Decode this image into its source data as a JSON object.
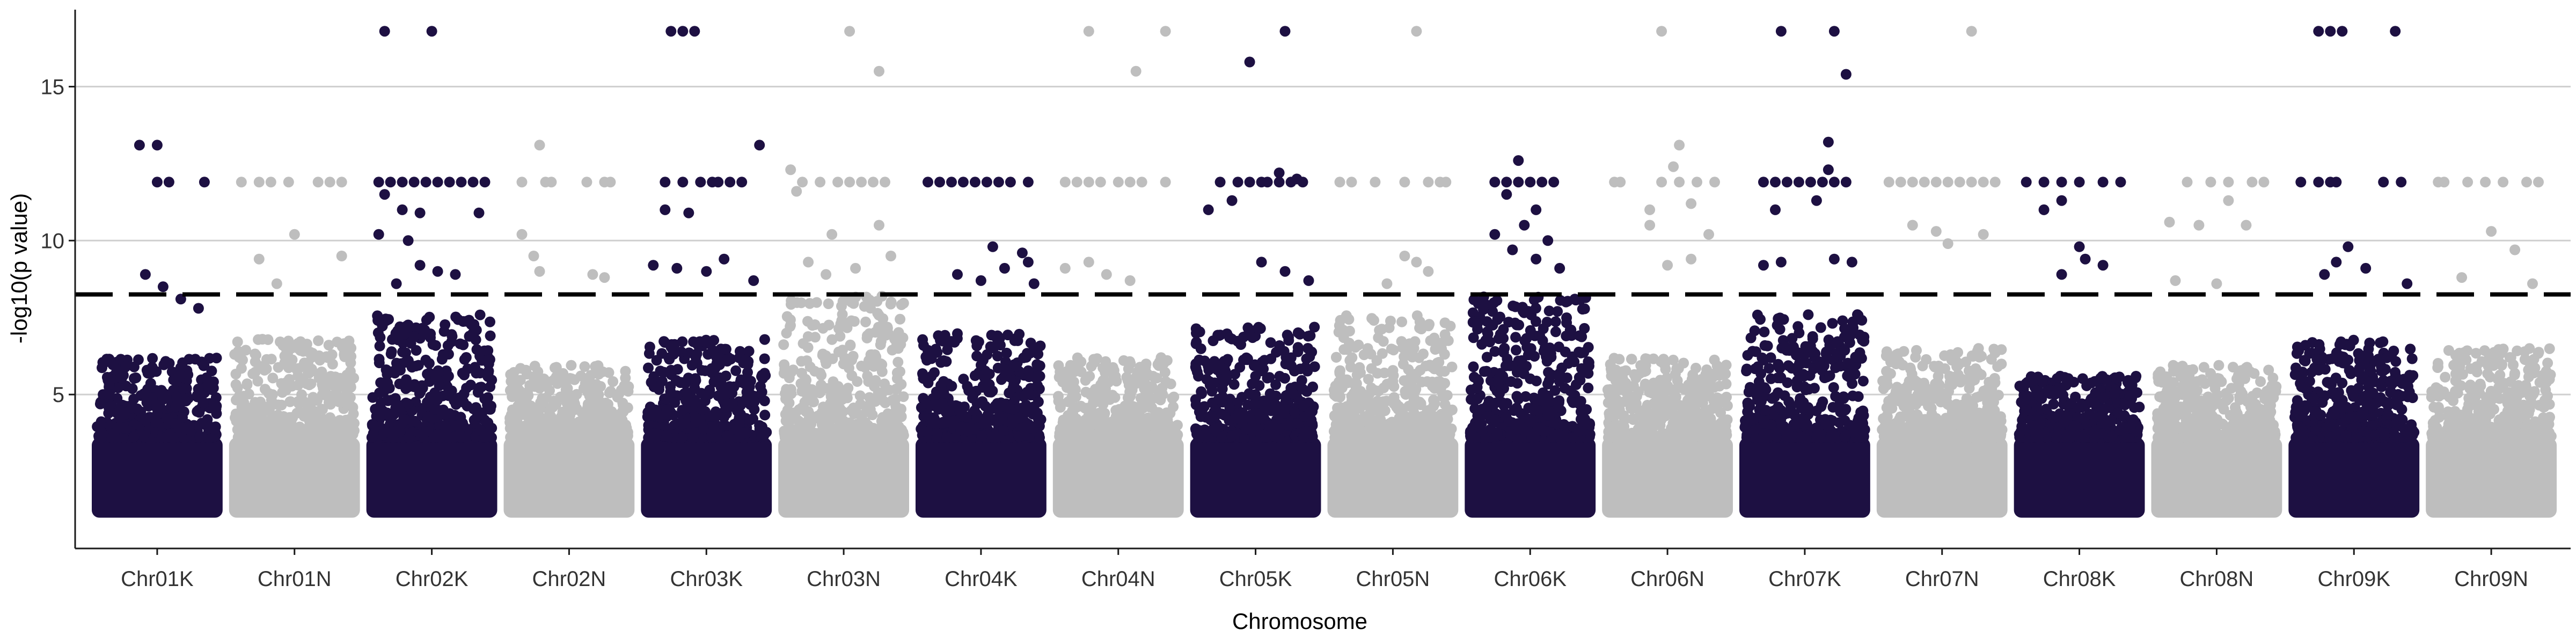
{
  "chart_data": {
    "type": "scatter",
    "title": "",
    "xlabel": "Chromosome",
    "ylabel": "-log10(p value)",
    "ylim": [
      0,
      17.5
    ],
    "yticks": [
      5,
      10,
      15
    ],
    "grid": "horizontal major lines",
    "legend": "none",
    "significance_threshold": 8.25,
    "colors": {
      "odd": "#1d1042",
      "even": "#bebebe",
      "threshold": "#000000"
    },
    "categories": [
      "Chr01K",
      "Chr01N",
      "Chr02K",
      "Chr02N",
      "Chr03K",
      "Chr03N",
      "Chr04K",
      "Chr04N",
      "Chr05K",
      "Chr05N",
      "Chr06K",
      "Chr06N",
      "Chr07K",
      "Chr07N",
      "Chr08K",
      "Chr08N",
      "Chr09K",
      "Chr09N"
    ],
    "series": [
      {
        "chromosome": "Chr01K",
        "bulk_max": 6.2,
        "top_hits": [
          [
            0.35,
            13.1
          ],
          [
            0.5,
            13.1
          ],
          [
            0.5,
            11.9
          ],
          [
            0.6,
            11.9
          ],
          [
            0.9,
            11.9
          ],
          [
            0.4,
            8.9
          ],
          [
            0.55,
            8.5
          ],
          [
            0.7,
            8.1
          ],
          [
            0.85,
            7.8
          ]
        ]
      },
      {
        "chromosome": "Chr01N",
        "bulk_max": 6.8,
        "top_hits": [
          [
            0.05,
            11.9
          ],
          [
            0.2,
            11.9
          ],
          [
            0.3,
            11.9
          ],
          [
            0.45,
            11.9
          ],
          [
            0.7,
            11.9
          ],
          [
            0.8,
            11.9
          ],
          [
            0.9,
            11.9
          ],
          [
            0.5,
            10.2
          ],
          [
            0.9,
            9.5
          ],
          [
            0.2,
            9.4
          ],
          [
            0.35,
            8.6
          ]
        ]
      },
      {
        "chromosome": "Chr02K",
        "bulk_max": 7.6,
        "top_hits": [
          [
            0.1,
            16.8
          ],
          [
            0.5,
            16.8
          ],
          [
            0.05,
            11.9
          ],
          [
            0.15,
            11.9
          ],
          [
            0.25,
            11.9
          ],
          [
            0.35,
            11.9
          ],
          [
            0.45,
            11.9
          ],
          [
            0.55,
            11.9
          ],
          [
            0.65,
            11.9
          ],
          [
            0.75,
            11.9
          ],
          [
            0.85,
            11.9
          ],
          [
            0.95,
            11.9
          ],
          [
            0.1,
            11.5
          ],
          [
            0.25,
            11.0
          ],
          [
            0.4,
            10.9
          ],
          [
            0.9,
            10.9
          ],
          [
            0.05,
            10.2
          ],
          [
            0.3,
            10.0
          ],
          [
            0.4,
            9.2
          ],
          [
            0.55,
            9.0
          ],
          [
            0.7,
            8.9
          ],
          [
            0.2,
            8.6
          ]
        ]
      },
      {
        "chromosome": "Chr02N",
        "bulk_max": 6.0,
        "top_hits": [
          [
            0.1,
            11.9
          ],
          [
            0.3,
            11.9
          ],
          [
            0.35,
            11.9
          ],
          [
            0.65,
            11.9
          ],
          [
            0.8,
            11.9
          ],
          [
            0.85,
            11.9
          ],
          [
            0.25,
            13.1
          ],
          [
            0.1,
            10.2
          ],
          [
            0.2,
            9.5
          ],
          [
            0.25,
            9.0
          ],
          [
            0.7,
            8.9
          ],
          [
            0.8,
            8.8
          ]
        ]
      },
      {
        "chromosome": "Chr03K",
        "bulk_max": 6.8,
        "top_hits": [
          [
            0.2,
            16.8
          ],
          [
            0.3,
            16.8
          ],
          [
            0.4,
            16.8
          ],
          [
            0.95,
            13.1
          ],
          [
            0.15,
            11.9
          ],
          [
            0.3,
            11.9
          ],
          [
            0.45,
            11.9
          ],
          [
            0.55,
            11.9
          ],
          [
            0.6,
            11.9
          ],
          [
            0.7,
            11.9
          ],
          [
            0.8,
            11.9
          ],
          [
            0.15,
            11.0
          ],
          [
            0.35,
            10.9
          ],
          [
            0.05,
            9.2
          ],
          [
            0.25,
            9.1
          ],
          [
            0.5,
            9.0
          ],
          [
            0.65,
            9.4
          ],
          [
            0.9,
            8.7
          ]
        ]
      },
      {
        "chromosome": "Chr03N",
        "bulk_max": 8.2,
        "top_hits": [
          [
            0.55,
            16.8
          ],
          [
            0.8,
            15.5
          ],
          [
            0.05,
            12.3
          ],
          [
            0.15,
            11.9
          ],
          [
            0.3,
            11.9
          ],
          [
            0.45,
            11.9
          ],
          [
            0.55,
            11.9
          ],
          [
            0.65,
            11.9
          ],
          [
            0.75,
            11.9
          ],
          [
            0.85,
            11.9
          ],
          [
            0.1,
            11.6
          ],
          [
            0.4,
            10.2
          ],
          [
            0.8,
            10.5
          ],
          [
            0.2,
            9.3
          ],
          [
            0.6,
            9.1
          ],
          [
            0.9,
            9.5
          ],
          [
            0.35,
            8.9
          ]
        ]
      },
      {
        "chromosome": "Chr04K",
        "bulk_max": 7.0,
        "top_hits": [
          [
            0.05,
            11.9
          ],
          [
            0.15,
            11.9
          ],
          [
            0.25,
            11.9
          ],
          [
            0.35,
            11.9
          ],
          [
            0.45,
            11.9
          ],
          [
            0.55,
            11.9
          ],
          [
            0.65,
            11.9
          ],
          [
            0.75,
            11.9
          ],
          [
            0.9,
            11.9
          ],
          [
            0.6,
            9.8
          ],
          [
            0.85,
            9.6
          ],
          [
            0.9,
            9.3
          ],
          [
            0.7,
            9.1
          ],
          [
            0.3,
            8.9
          ],
          [
            0.5,
            8.7
          ],
          [
            0.95,
            8.6
          ]
        ]
      },
      {
        "chromosome": "Chr04N",
        "bulk_max": 6.2,
        "top_hits": [
          [
            0.25,
            16.8
          ],
          [
            0.9,
            16.8
          ],
          [
            0.65,
            15.5
          ],
          [
            0.05,
            11.9
          ],
          [
            0.15,
            11.9
          ],
          [
            0.25,
            11.9
          ],
          [
            0.35,
            11.9
          ],
          [
            0.5,
            11.9
          ],
          [
            0.6,
            11.9
          ],
          [
            0.7,
            11.9
          ],
          [
            0.9,
            11.9
          ],
          [
            0.25,
            9.3
          ],
          [
            0.05,
            9.1
          ],
          [
            0.4,
            8.9
          ],
          [
            0.6,
            8.7
          ]
        ]
      },
      {
        "chromosome": "Chr05K",
        "bulk_max": 7.2,
        "top_hits": [
          [
            0.45,
            15.8
          ],
          [
            0.75,
            16.8
          ],
          [
            0.2,
            11.9
          ],
          [
            0.35,
            11.9
          ],
          [
            0.45,
            11.9
          ],
          [
            0.55,
            11.9
          ],
          [
            0.6,
            11.9
          ],
          [
            0.7,
            11.9
          ],
          [
            0.8,
            11.9
          ],
          [
            0.9,
            11.9
          ],
          [
            0.7,
            12.2
          ],
          [
            0.85,
            12.0
          ],
          [
            0.1,
            11.0
          ],
          [
            0.3,
            11.3
          ],
          [
            0.55,
            9.3
          ],
          [
            0.75,
            9.0
          ],
          [
            0.95,
            8.7
          ]
        ]
      },
      {
        "chromosome": "Chr05N",
        "bulk_max": 7.6,
        "top_hits": [
          [
            0.7,
            16.8
          ],
          [
            0.05,
            11.9
          ],
          [
            0.15,
            11.9
          ],
          [
            0.35,
            11.9
          ],
          [
            0.6,
            11.9
          ],
          [
            0.8,
            11.9
          ],
          [
            0.9,
            11.9
          ],
          [
            0.95,
            11.9
          ],
          [
            0.6,
            9.5
          ],
          [
            0.7,
            9.3
          ],
          [
            0.8,
            9.0
          ],
          [
            0.45,
            8.6
          ]
        ]
      },
      {
        "chromosome": "Chr06K",
        "bulk_max": 8.2,
        "top_hits": [
          [
            0.4,
            12.6
          ],
          [
            0.2,
            11.9
          ],
          [
            0.3,
            11.9
          ],
          [
            0.4,
            11.9
          ],
          [
            0.5,
            11.9
          ],
          [
            0.6,
            11.9
          ],
          [
            0.7,
            11.9
          ],
          [
            0.3,
            11.5
          ],
          [
            0.55,
            11.0
          ],
          [
            0.45,
            10.5
          ],
          [
            0.2,
            10.2
          ],
          [
            0.65,
            10.0
          ],
          [
            0.35,
            9.7
          ],
          [
            0.55,
            9.4
          ],
          [
            0.75,
            9.1
          ]
        ]
      },
      {
        "chromosome": "Chr06N",
        "bulk_max": 6.2,
        "top_hits": [
          [
            0.45,
            16.8
          ],
          [
            0.55,
            12.4
          ],
          [
            0.6,
            13.1
          ],
          [
            0.05,
            11.9
          ],
          [
            0.1,
            11.9
          ],
          [
            0.45,
            11.9
          ],
          [
            0.6,
            11.9
          ],
          [
            0.75,
            11.9
          ],
          [
            0.9,
            11.9
          ],
          [
            0.35,
            11.0
          ],
          [
            0.7,
            11.2
          ],
          [
            0.85,
            10.2
          ],
          [
            0.35,
            10.5
          ],
          [
            0.5,
            9.2
          ],
          [
            0.7,
            9.4
          ]
        ]
      },
      {
        "chromosome": "Chr07K",
        "bulk_max": 7.6,
        "top_hits": [
          [
            0.3,
            16.8
          ],
          [
            0.75,
            16.8
          ],
          [
            0.85,
            15.4
          ],
          [
            0.7,
            13.2
          ],
          [
            0.15,
            11.9
          ],
          [
            0.25,
            11.9
          ],
          [
            0.35,
            11.9
          ],
          [
            0.45,
            11.9
          ],
          [
            0.55,
            11.9
          ],
          [
            0.65,
            11.9
          ],
          [
            0.75,
            11.9
          ],
          [
            0.85,
            11.9
          ],
          [
            0.7,
            12.3
          ],
          [
            0.25,
            11.0
          ],
          [
            0.6,
            11.3
          ],
          [
            0.15,
            9.2
          ],
          [
            0.3,
            9.3
          ],
          [
            0.75,
            9.4
          ],
          [
            0.9,
            9.3
          ]
        ]
      },
      {
        "chromosome": "Chr07N",
        "bulk_max": 6.5,
        "top_hits": [
          [
            0.75,
            16.8
          ],
          [
            0.05,
            11.9
          ],
          [
            0.15,
            11.9
          ],
          [
            0.25,
            11.9
          ],
          [
            0.35,
            11.9
          ],
          [
            0.45,
            11.9
          ],
          [
            0.55,
            11.9
          ],
          [
            0.65,
            11.9
          ],
          [
            0.75,
            11.9
          ],
          [
            0.85,
            11.9
          ],
          [
            0.95,
            11.9
          ],
          [
            0.25,
            10.5
          ],
          [
            0.45,
            10.3
          ],
          [
            0.55,
            9.9
          ],
          [
            0.85,
            10.2
          ]
        ]
      },
      {
        "chromosome": "Chr08K",
        "bulk_max": 5.6,
        "top_hits": [
          [
            0.05,
            11.9
          ],
          [
            0.2,
            11.9
          ],
          [
            0.35,
            11.9
          ],
          [
            0.5,
            11.9
          ],
          [
            0.7,
            11.9
          ],
          [
            0.85,
            11.9
          ],
          [
            0.2,
            11.0
          ],
          [
            0.35,
            11.3
          ],
          [
            0.5,
            9.8
          ],
          [
            0.55,
            9.4
          ],
          [
            0.7,
            9.2
          ],
          [
            0.35,
            8.9
          ]
        ]
      },
      {
        "chromosome": "Chr08N",
        "bulk_max": 6.0,
        "top_hits": [
          [
            0.25,
            11.9
          ],
          [
            0.45,
            11.9
          ],
          [
            0.6,
            11.9
          ],
          [
            0.8,
            11.9
          ],
          [
            0.9,
            11.9
          ],
          [
            0.1,
            10.6
          ],
          [
            0.35,
            10.5
          ],
          [
            0.6,
            11.3
          ],
          [
            0.75,
            10.5
          ],
          [
            0.15,
            8.7
          ],
          [
            0.5,
            8.6
          ]
        ]
      },
      {
        "chromosome": "Chr09K",
        "bulk_max": 6.8,
        "top_hits": [
          [
            0.2,
            16.8
          ],
          [
            0.3,
            16.8
          ],
          [
            0.4,
            16.8
          ],
          [
            0.85,
            16.8
          ],
          [
            0.05,
            11.9
          ],
          [
            0.2,
            11.9
          ],
          [
            0.3,
            11.9
          ],
          [
            0.35,
            11.9
          ],
          [
            0.75,
            11.9
          ],
          [
            0.9,
            11.9
          ],
          [
            0.45,
            9.8
          ],
          [
            0.35,
            9.3
          ],
          [
            0.6,
            9.1
          ],
          [
            0.25,
            8.9
          ],
          [
            0.95,
            8.6
          ]
        ]
      },
      {
        "chromosome": "Chr09N",
        "bulk_max": 6.5,
        "top_hits": [
          [
            0.05,
            11.9
          ],
          [
            0.1,
            11.9
          ],
          [
            0.3,
            11.9
          ],
          [
            0.45,
            11.9
          ],
          [
            0.6,
            11.9
          ],
          [
            0.8,
            11.9
          ],
          [
            0.9,
            11.9
          ],
          [
            0.5,
            10.3
          ],
          [
            0.7,
            9.7
          ],
          [
            0.25,
            8.8
          ],
          [
            0.85,
            8.6
          ]
        ]
      }
    ]
  }
}
